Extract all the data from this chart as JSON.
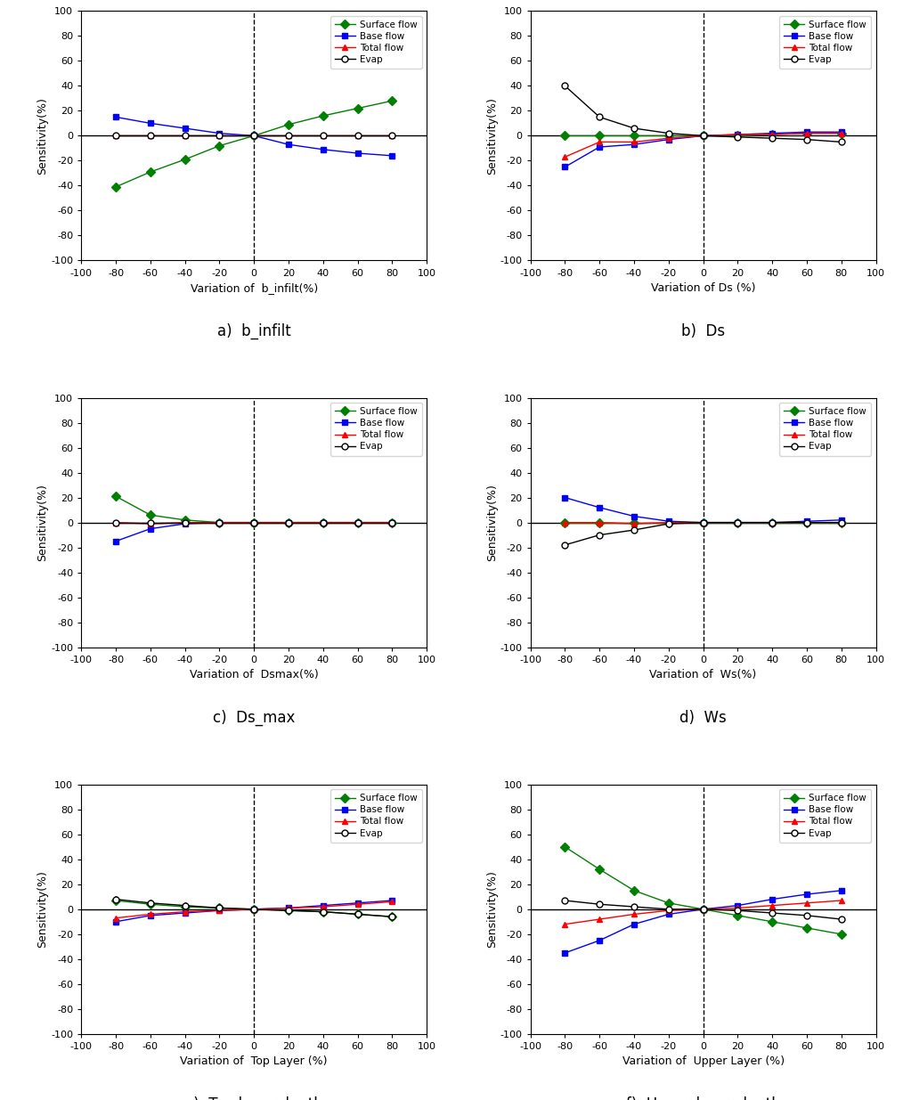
{
  "x_vals": [
    -80,
    -60,
    -40,
    -20,
    0,
    20,
    40,
    60,
    80
  ],
  "panels": [
    {
      "label": "a)  b_infilt",
      "xlabel": "Variation of  b_infilt(%)",
      "surface_flow": [
        -41,
        -29,
        -19,
        -8,
        0,
        9,
        16,
        22,
        28
      ],
      "base_flow": [
        15,
        10,
        6,
        2,
        0,
        -7,
        -11,
        -14,
        -16
      ],
      "total_flow": [
        0,
        0,
        0,
        0,
        0,
        0,
        0,
        0,
        0
      ],
      "evap": [
        0,
        0,
        0,
        0,
        0,
        0,
        0,
        0,
        0
      ]
    },
    {
      "label": "b)  Ds",
      "xlabel": "Variation of Ds (%)",
      "surface_flow": [
        0,
        0,
        0,
        0,
        0,
        0,
        1,
        2,
        2
      ],
      "base_flow": [
        -25,
        -9,
        -7,
        -3,
        0,
        1,
        2,
        3,
        3
      ],
      "total_flow": [
        -17,
        -5,
        -5,
        -2,
        0,
        1,
        1,
        2,
        2
      ],
      "evap": [
        40,
        15,
        6,
        2,
        0,
        -1,
        -2,
        -3,
        -5
      ]
    },
    {
      "label": "c)  Ds_max",
      "xlabel": "Variation of  Dsmax(%)",
      "surface_flow": [
        21,
        6,
        2,
        0,
        0,
        0,
        0,
        0,
        0
      ],
      "base_flow": [
        -15,
        -5,
        -1,
        0,
        0,
        0,
        0,
        0,
        0
      ],
      "total_flow": [
        0,
        -1,
        0,
        0,
        0,
        0,
        0,
        0,
        0
      ],
      "evap": [
        0,
        0,
        0,
        0,
        0,
        0,
        0,
        0,
        0
      ]
    },
    {
      "label": "d)  Ws",
      "xlabel": "Variation of  Ws(%)",
      "surface_flow": [
        0,
        0,
        0,
        0,
        0,
        0,
        0,
        0,
        0
      ],
      "base_flow": [
        20,
        12,
        5,
        1,
        0,
        0,
        0,
        1,
        2
      ],
      "total_flow": [
        0,
        0,
        -1,
        0,
        0,
        0,
        0,
        0,
        0
      ],
      "evap": [
        -18,
        -10,
        -6,
        -1,
        0,
        0,
        0,
        0,
        0
      ]
    },
    {
      "label": "e)  Top layer depth",
      "xlabel": "Variation of  Top Layer (%)",
      "surface_flow": [
        7,
        4,
        2,
        1,
        0,
        -1,
        -2,
        -4,
        -6
      ],
      "base_flow": [
        -10,
        -5,
        -3,
        -1,
        0,
        1,
        3,
        5,
        7
      ],
      "total_flow": [
        -7,
        -4,
        -2,
        -1,
        0,
        1,
        2,
        4,
        6
      ],
      "evap": [
        8,
        5,
        3,
        1,
        0,
        -1,
        -2,
        -4,
        -6
      ]
    },
    {
      "label": "f)  Upper layer depth",
      "xlabel": "Variation of  Upper Layer (%)",
      "surface_flow": [
        50,
        32,
        15,
        5,
        0,
        -5,
        -10,
        -15,
        -20
      ],
      "base_flow": [
        -35,
        -25,
        -12,
        -4,
        0,
        3,
        8,
        12,
        15
      ],
      "total_flow": [
        -12,
        -8,
        -4,
        -1,
        0,
        1,
        3,
        5,
        7
      ],
      "evap": [
        7,
        4,
        2,
        0,
        0,
        -1,
        -3,
        -5,
        -8
      ]
    }
  ],
  "colors": {
    "surface_flow": "#008000",
    "base_flow": "#0000FF",
    "total_flow": "#FF0000",
    "evap": "#000000"
  },
  "markers": {
    "surface_flow": "D",
    "base_flow": "s",
    "total_flow": "^",
    "evap": "o"
  },
  "legend_labels": [
    "Surface flow",
    "Base flow",
    "Total flow",
    "Evap"
  ],
  "ylabel": "Sensitivity(%)",
  "ylim": [
    -100,
    100
  ],
  "xlim": [
    -100,
    100
  ],
  "yticks": [
    -100,
    -80,
    -60,
    -40,
    -20,
    0,
    20,
    40,
    60,
    80,
    100
  ],
  "xticks": [
    -100,
    -80,
    -60,
    -40,
    -20,
    0,
    20,
    40,
    60,
    80,
    100
  ]
}
